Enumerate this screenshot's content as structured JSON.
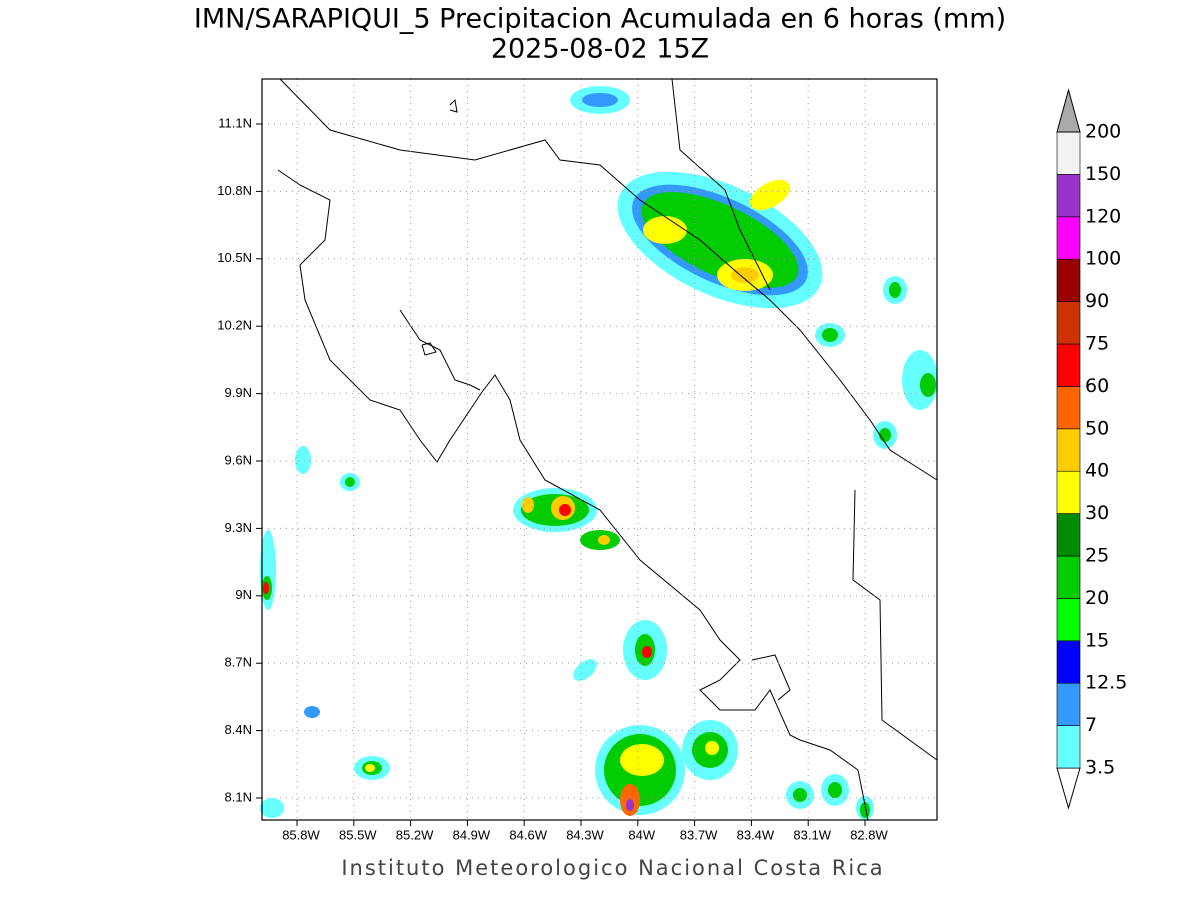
{
  "title": "IMN/SARAPIQUI_5 Precipitacion Acumulada en 6 horas (mm)",
  "subtitle": "2025-08-02 15Z",
  "map": {
    "lat_labels": [
      "11.1N",
      "10.8N",
      "10.5N",
      "10.2N",
      "9.9N",
      "9.6N",
      "9.3N",
      "9N",
      "8.7N",
      "8.4N",
      "8.1N"
    ],
    "lon_labels": [
      "85.8W",
      "85.5W",
      "85.2W",
      "84.9W",
      "84.6W",
      "84.3W",
      "84W",
      "83.7W",
      "83.4W",
      "83.1W",
      "82.8W"
    ],
    "grid": true
  },
  "colorbar": {
    "levels": [
      3.5,
      7,
      12.5,
      15,
      20,
      25,
      30,
      40,
      50,
      60,
      75,
      90,
      100,
      120,
      150,
      200
    ],
    "colors": [
      "#66ffff",
      "#3399ff",
      "#0000ff",
      "#00ff00",
      "#00cc00",
      "#008c00",
      "#ffff00",
      "#ffcc00",
      "#ff6600",
      "#ff0000",
      "#cc3300",
      "#990000",
      "#ff00ff",
      "#9933cc",
      "#f2f2f2"
    ],
    "under_color": "#ffffff",
    "over_color": "#aaaaaa"
  },
  "footer": "Instituto Meteorologico Nacional Costa Rica"
}
